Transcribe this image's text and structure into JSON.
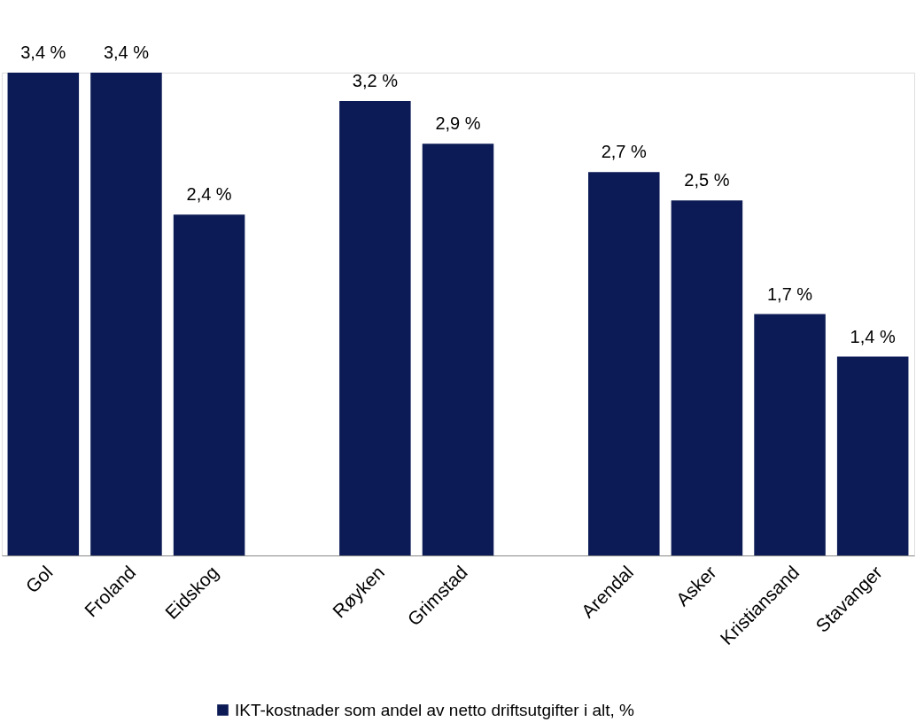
{
  "chart_data": {
    "type": "bar",
    "categories": [
      "Gol",
      "Froland",
      "Eidskog",
      null,
      "Røyken",
      "Grimstad",
      null,
      "Arendal",
      "Asker",
      "Kristiansand",
      "Stavanger"
    ],
    "series": [
      {
        "name": "IKT-kostnader som andel av netto driftsutgifter i alt, %",
        "color": "#0c1b55",
        "values": [
          3.4,
          3.4,
          2.4,
          null,
          3.2,
          2.9,
          null,
          2.7,
          2.5,
          1.7,
          1.4
        ],
        "value_labels": [
          "3,4 %",
          "3,4 %",
          "2,4 %",
          null,
          "3,2 %",
          "2,9 %",
          null,
          "2,7 %",
          "2,5 %",
          "1,7 %",
          "1,4 %"
        ]
      }
    ],
    "legend": "bottom",
    "grid": false
  }
}
